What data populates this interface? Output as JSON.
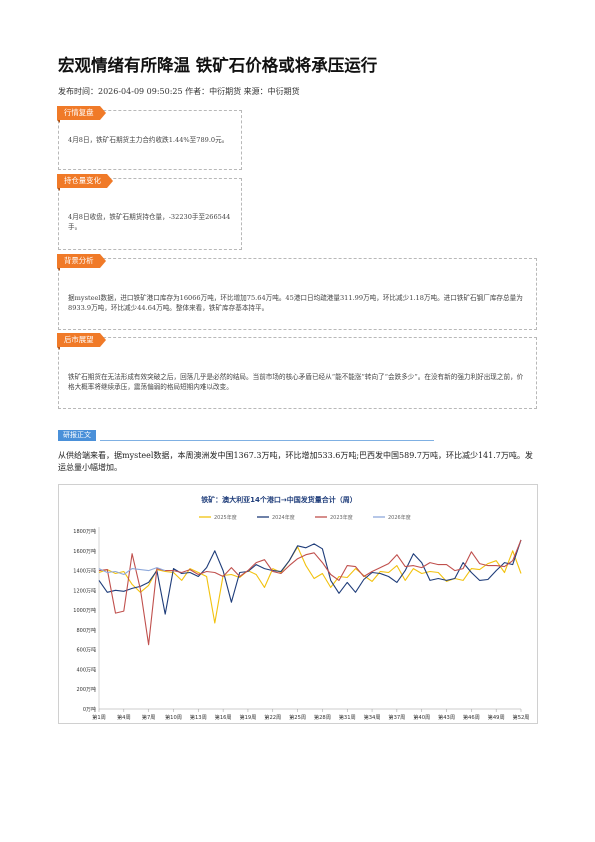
{
  "article": {
    "title": "宏观情绪有所降温 铁矿石价格或将承压运行",
    "meta": "发布时间：2026-04-09 09:50:25 作者：中衍期货 来源：中衍期货"
  },
  "sections": {
    "market_review": {
      "tag": "行情复盘",
      "text": "4月8日，铁矿石期货主力合约收跌1.44%至789.0元。"
    },
    "position_change": {
      "tag": "持仓量变化",
      "text": "4月8日收盘，铁矿石期货持仓量，-32230手至266544手。"
    },
    "background": {
      "tag": "背景分析",
      "text": "据mysteel数据，进口铁矿港口库存为16066万吨，环比增加75.64万吨。45港口日均疏港量311.99万吨，环比减少1.18万吨。进口铁矿石钢厂库存总量为8933.9万吨，环比减少44.64万吨。整体来看，铁矿库存基本持平。"
    },
    "outlook": {
      "tag": "后市展望",
      "text": "铁矿石期货在无法形成有效突破之后，回落几乎是必然的结局。当前市场的核心矛盾已经从“能不能涨”转向了“会跌多少”。在没有新的强力利好出现之前，价格大概率将继续承压，震荡偏弱的格局短期内难以改变。"
    }
  },
  "research": {
    "tag": "研报正文",
    "text": "从供给端来看，据mysteel数据，本周澳洲发中国1367.3万吨，环比增加533.6万吨;巴西发中国589.7万吨，环比减少141.7万吨。发运总量小幅增加。"
  },
  "chart_data": {
    "type": "line",
    "title": "铁矿：澳大利亚14个港口→中国发货量合计（周）",
    "ylim": [
      0,
      1800
    ],
    "yticks": [
      "0万吨",
      "200万吨",
      "400万吨",
      "600万吨",
      "800万吨",
      "1000万吨",
      "1200万吨",
      "1400万吨",
      "1600万吨",
      "1800万吨"
    ],
    "x_tick_labels": [
      "第1周",
      "第4周",
      "第7周",
      "第10周",
      "第13周",
      "第16周",
      "第19周",
      "第22周",
      "第25周",
      "第28周",
      "第31周",
      "第34周",
      "第37周",
      "第40周",
      "第43周",
      "第46周",
      "第49周",
      "第52周"
    ],
    "legend_position": "top",
    "grid": false,
    "series": [
      {
        "name": "2025年度",
        "color": "#f2c20f",
        "values": [
          1380,
          1410,
          1370,
          1390,
          1260,
          1180,
          1250,
          1410,
          1390,
          1380,
          1300,
          1420,
          1380,
          1340,
          870,
          1350,
          1360,
          1330,
          1400,
          1360,
          1230,
          1420,
          1380,
          1500,
          1640,
          1450,
          1320,
          1370,
          1230,
          1340,
          1330,
          1420,
          1350,
          1290,
          1390,
          1380,
          1450,
          1300,
          1420,
          1370,
          1390,
          1380,
          1290,
          1320,
          1300,
          1420,
          1410,
          1470,
          1500,
          1380,
          1600,
          1370
        ]
      },
      {
        "name": "2024年度",
        "color": "#1f3d7a",
        "values": [
          1300,
          1180,
          1200,
          1190,
          1220,
          1240,
          1280,
          1400,
          960,
          1420,
          1370,
          1380,
          1340,
          1430,
          1600,
          1400,
          1080,
          1380,
          1390,
          1460,
          1420,
          1400,
          1390,
          1500,
          1650,
          1630,
          1670,
          1620,
          1300,
          1170,
          1280,
          1180,
          1310,
          1380,
          1370,
          1340,
          1280,
          1400,
          1570,
          1480,
          1300,
          1320,
          1300,
          1320,
          1480,
          1380,
          1300,
          1310,
          1400,
          1480,
          1460,
          1710
        ]
      },
      {
        "name": "2023年度",
        "color": "#c0504d",
        "values": [
          1400,
          1410,
          970,
          990,
          1570,
          1210,
          650,
          1420,
          1400,
          1400,
          1380,
          1410,
          1360,
          1390,
          1380,
          1340,
          1430,
          1340,
          1400,
          1480,
          1510,
          1390,
          1370,
          1450,
          1520,
          1560,
          1580,
          1480,
          1360,
          1300,
          1450,
          1440,
          1340,
          1390,
          1430,
          1470,
          1560,
          1440,
          1450,
          1430,
          1480,
          1460,
          1460,
          1400,
          1420,
          1590,
          1470,
          1450,
          1450,
          1440,
          1500,
          1710
        ]
      },
      {
        "name": "2026年度",
        "color": "#8ea9db",
        "values": [
          1420,
          1380,
          1390,
          1360,
          1420,
          1410,
          1400,
          1430,
          1400
        ]
      }
    ]
  }
}
